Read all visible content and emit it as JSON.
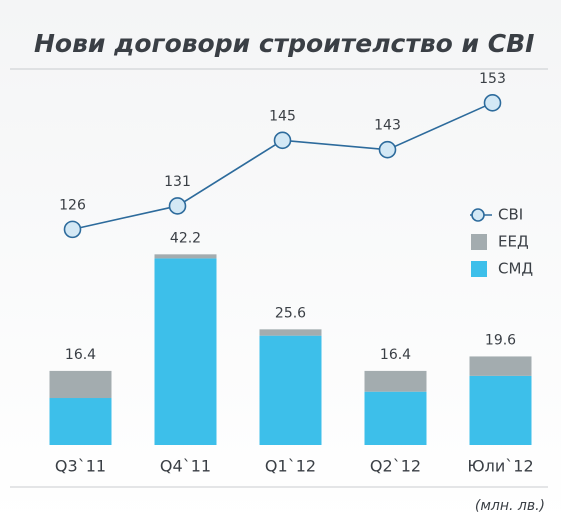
{
  "chart_data": {
    "type": "bar",
    "title": "Нови договори строителство и СВІ",
    "unit_note": "(млн. лв.)",
    "categories": [
      "Q3`11",
      "Q4`11",
      "Q1`12",
      "Q2`12",
      "Юли`12"
    ],
    "series": [
      {
        "name": "СМД",
        "color": "#3dbfea",
        "values": [
          10.4,
          41.3,
          24.2,
          11.8,
          15.3
        ]
      },
      {
        "name": "ЕЕД",
        "color": "#a3acaf",
        "values": [
          6.0,
          0.9,
          1.4,
          4.6,
          4.3
        ]
      },
      {
        "name": "СВІ",
        "type": "line",
        "axis": "y2",
        "color": "#2d6b9c",
        "values": [
          126,
          131,
          145,
          143,
          153
        ]
      }
    ],
    "totals": [
      16.4,
      42.2,
      25.6,
      16.4,
      19.6
    ],
    "ylim": [
      0,
      83
    ],
    "y2lim": [
      80,
      160
    ],
    "stacked": true,
    "legend": "right"
  }
}
